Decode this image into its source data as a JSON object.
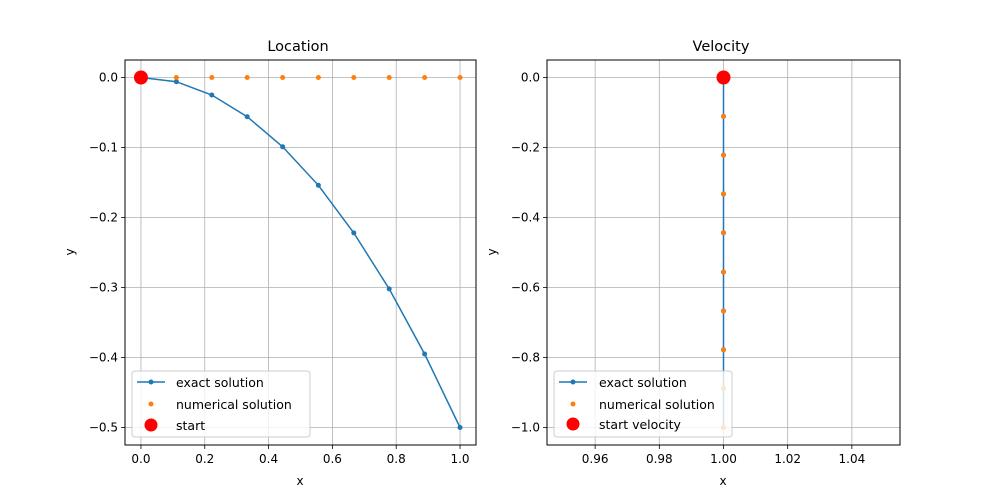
{
  "colors": {
    "exact": "#1f77b4",
    "numerical": "#ff7f0e",
    "start": "#ff0000",
    "grid": "#b0b0b0",
    "axes": "#000000"
  },
  "chart_data": [
    {
      "type": "line",
      "title": "Location",
      "xlabel": "x",
      "ylabel": "y",
      "xlim": [
        -0.05,
        1.05
      ],
      "ylim": [
        -0.525,
        0.025
      ],
      "xticks": [
        0.0,
        0.2,
        0.4,
        0.6,
        0.8,
        1.0
      ],
      "xtick_labels": [
        "0.0",
        "0.2",
        "0.4",
        "0.6",
        "0.8",
        "1.0"
      ],
      "yticks": [
        0.0,
        -0.1,
        -0.2,
        -0.3,
        -0.4,
        -0.5
      ],
      "ytick_labels": [
        "0.0",
        "−0.1",
        "−0.2",
        "−0.3",
        "−0.4",
        "−0.5"
      ],
      "grid": true,
      "legend_position": "lower-left",
      "series": [
        {
          "name": "exact solution",
          "style": "line-marker",
          "x": [
            0.0,
            0.111,
            0.222,
            0.333,
            0.444,
            0.556,
            0.667,
            0.778,
            0.889,
            1.0
          ],
          "y": [
            0.0,
            -0.006,
            -0.025,
            -0.056,
            -0.099,
            -0.154,
            -0.222,
            -0.302,
            -0.395,
            -0.5
          ]
        },
        {
          "name": "numerical solution",
          "style": "marker",
          "x": [
            0.0,
            0.111,
            0.222,
            0.333,
            0.444,
            0.556,
            0.667,
            0.778,
            0.889,
            1.0
          ],
          "y": [
            0.0,
            0.0,
            0.0,
            0.0,
            0.0,
            0.0,
            0.0,
            0.0,
            0.0,
            0.0
          ]
        },
        {
          "name": "start",
          "style": "big-marker",
          "x": [
            0.0
          ],
          "y": [
            0.0
          ]
        }
      ]
    },
    {
      "type": "line",
      "title": "Velocity",
      "xlabel": "x",
      "ylabel": "y",
      "xlim": [
        0.945,
        1.055
      ],
      "ylim": [
        -1.05,
        0.05
      ],
      "xticks": [
        0.96,
        0.98,
        1.0,
        1.02,
        1.04
      ],
      "xtick_labels": [
        "0.96",
        "0.98",
        "1.00",
        "1.02",
        "1.04"
      ],
      "yticks": [
        0.0,
        -0.2,
        -0.4,
        -0.6,
        -0.8,
        -1.0
      ],
      "ytick_labels": [
        "0.0",
        "−0.2",
        "−0.4",
        "−0.6",
        "−0.8",
        "−1.0"
      ],
      "grid": true,
      "legend_position": "lower-left",
      "series": [
        {
          "name": "exact solution",
          "style": "line-marker",
          "x": [
            1.0,
            1.0,
            1.0,
            1.0,
            1.0,
            1.0,
            1.0,
            1.0,
            1.0,
            1.0
          ],
          "y": [
            0.0,
            -0.111,
            -0.222,
            -0.333,
            -0.444,
            -0.556,
            -0.667,
            -0.778,
            -0.889,
            -1.0
          ]
        },
        {
          "name": "numerical solution",
          "style": "marker",
          "x": [
            1.0,
            1.0,
            1.0,
            1.0,
            1.0,
            1.0,
            1.0,
            1.0,
            1.0,
            1.0
          ],
          "y": [
            0.0,
            -0.111,
            -0.222,
            -0.333,
            -0.444,
            -0.556,
            -0.667,
            -0.778,
            -0.889,
            -1.0
          ]
        },
        {
          "name": "start velocity",
          "style": "big-marker",
          "x": [
            1.0
          ],
          "y": [
            0.0
          ]
        }
      ]
    }
  ]
}
